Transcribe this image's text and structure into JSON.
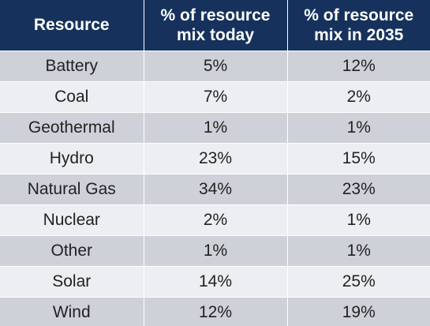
{
  "table": {
    "headers": [
      "Resource",
      "% of resource mix today",
      "% of resource mix in 2035"
    ],
    "rows": [
      {
        "resource": "Battery",
        "today": "5%",
        "y2035": "12%"
      },
      {
        "resource": "Coal",
        "today": "7%",
        "y2035": "2%"
      },
      {
        "resource": "Geothermal",
        "today": "1%",
        "y2035": "1%"
      },
      {
        "resource": "Hydro",
        "today": "23%",
        "y2035": "15%"
      },
      {
        "resource": "Natural Gas",
        "today": "34%",
        "y2035": "23%"
      },
      {
        "resource": "Nuclear",
        "today": "2%",
        "y2035": "1%"
      },
      {
        "resource": "Other",
        "today": "1%",
        "y2035": "1%"
      },
      {
        "resource": "Solar",
        "today": "14%",
        "y2035": "25%"
      },
      {
        "resource": "Wind",
        "today": "12%",
        "y2035": "19%"
      }
    ]
  },
  "colors": {
    "header_bg": "#16325c",
    "row_dark": "#cfd1d9",
    "row_light": "#edeef2"
  }
}
